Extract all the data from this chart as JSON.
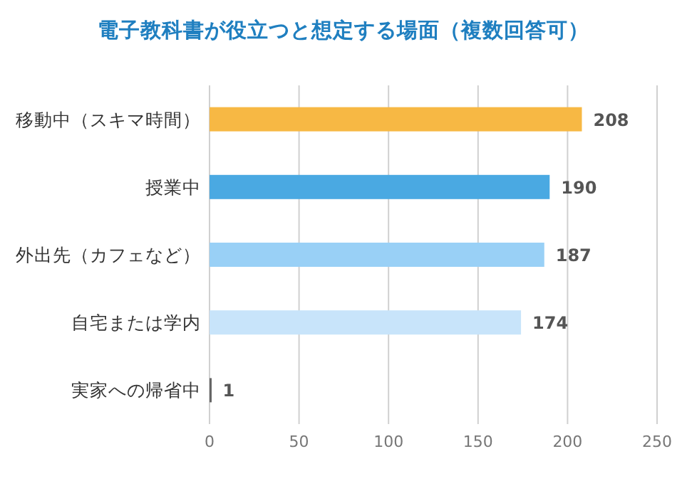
{
  "chart_data": {
    "type": "bar",
    "orientation": "horizontal",
    "title": "電子教科書が役立つと想定する場面（複数回答可）",
    "categories": [
      "移動中（スキマ時間）",
      "授業中",
      "外出先（カフェなど）",
      "自宅または学内",
      "実家への帰省中"
    ],
    "values": [
      208,
      190,
      187,
      174,
      1
    ],
    "colors": [
      "#f7b844",
      "#4aa9e2",
      "#99d0f6",
      "#c8e4fa",
      "#666666"
    ],
    "xlim": [
      0,
      250
    ],
    "xticks": [
      0,
      50,
      100,
      150,
      200,
      250
    ],
    "grid": "x",
    "data_labels": true
  }
}
